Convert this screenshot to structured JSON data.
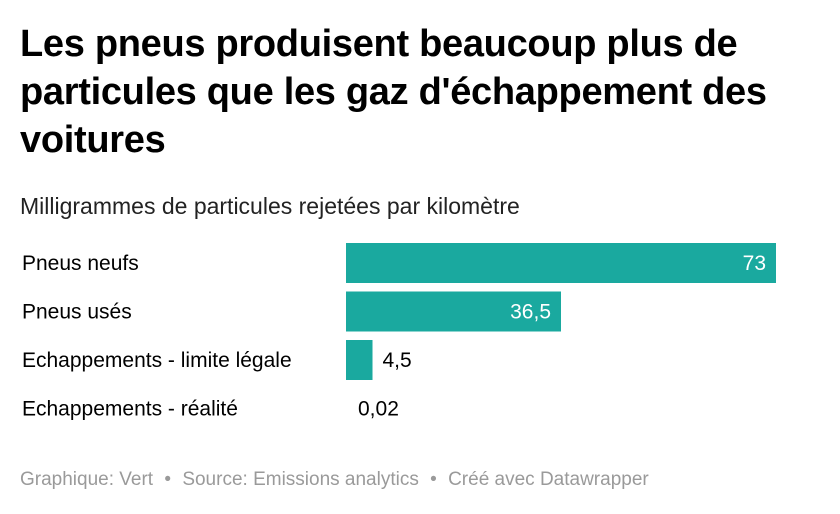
{
  "title": "Les pneus produisent beaucoup plus de particules que les gaz d'échappement des voitures",
  "subtitle": "Milligrammes de particules rejetées par kilomètre",
  "footer": {
    "graphic": "Graphique: Vert",
    "source": "Source: Emissions analytics",
    "tool": "Créé avec Datawrapper",
    "separator": "•"
  },
  "colors": {
    "bar": "#1aa99f",
    "label_inside": "#ffffff",
    "label_outside": "#000000",
    "footer_text": "#9a9a9a"
  },
  "chart_data": {
    "type": "bar",
    "orientation": "horizontal",
    "categories": [
      "Pneus neufs",
      "Pneus usés",
      "Echappements - limite légale",
      "Echappements - réalité"
    ],
    "values": [
      73,
      36.5,
      4.5,
      0.02
    ],
    "value_labels": [
      "73",
      "36,5",
      "4,5",
      "0,02"
    ],
    "title": "Les pneus produisent beaucoup plus de particules que les gaz d'échappement des voitures",
    "subtitle": "Milligrammes de particules rejetées par kilomètre",
    "xlim": [
      0,
      73
    ],
    "grid": false,
    "legend": "none"
  }
}
